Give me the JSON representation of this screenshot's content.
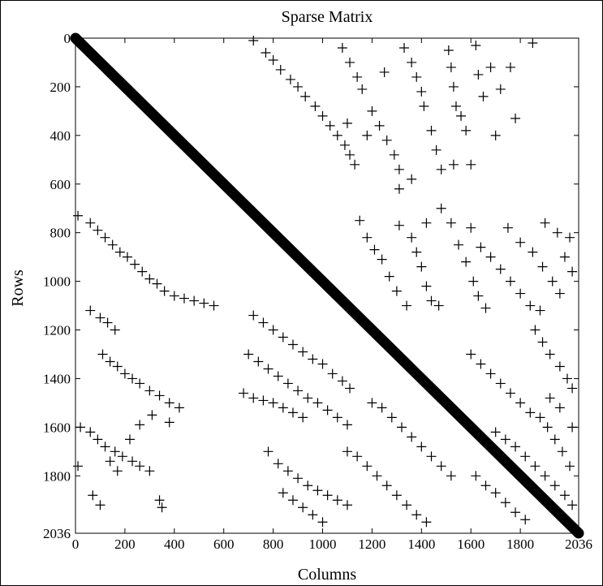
{
  "chart_data": {
    "type": "scatter",
    "title": "Sparse Matrix",
    "xlabel": "Columns",
    "ylabel": "Rows",
    "xlim": [
      0,
      2036
    ],
    "ylim": [
      0,
      2036
    ],
    "y_inverted": true,
    "marker": "+",
    "x_ticks": [
      0,
      200,
      400,
      600,
      800,
      1000,
      1200,
      1400,
      1600,
      1800,
      2036
    ],
    "y_ticks": [
      0,
      200,
      400,
      600,
      800,
      1000,
      1200,
      1400,
      1600,
      1800,
      2036
    ],
    "diagonal": {
      "from": [
        0,
        0
      ],
      "to": [
        2036,
        2036
      ]
    },
    "series": [
      {
        "structure": "upper off-diagonal bands",
        "points": [
          [
            720,
            10
          ],
          [
            770,
            60
          ],
          [
            800,
            90
          ],
          [
            830,
            130
          ],
          [
            870,
            170
          ],
          [
            900,
            200
          ],
          [
            930,
            240
          ],
          [
            970,
            280
          ],
          [
            1000,
            320
          ],
          [
            1030,
            360
          ],
          [
            1060,
            400
          ],
          [
            1090,
            440
          ],
          [
            1110,
            480
          ],
          [
            1130,
            520
          ],
          [
            1080,
            40
          ],
          [
            1110,
            100
          ],
          [
            1140,
            160
          ],
          [
            1160,
            210
          ],
          [
            1200,
            300
          ],
          [
            1230,
            360
          ],
          [
            1260,
            420
          ],
          [
            1290,
            480
          ],
          [
            1310,
            540
          ],
          [
            1330,
            40
          ],
          [
            1360,
            100
          ],
          [
            1380,
            160
          ],
          [
            1400,
            220
          ],
          [
            1410,
            280
          ],
          [
            1440,
            380
          ],
          [
            1460,
            460
          ],
          [
            1480,
            540
          ],
          [
            1510,
            50
          ],
          [
            1520,
            120
          ],
          [
            1530,
            200
          ],
          [
            1540,
            280
          ],
          [
            1560,
            320
          ],
          [
            1580,
            380
          ],
          [
            1600,
            520
          ],
          [
            1620,
            30
          ],
          [
            1630,
            150
          ],
          [
            1650,
            240
          ],
          [
            1680,
            120
          ],
          [
            1700,
            400
          ],
          [
            1720,
            210
          ],
          [
            1760,
            120
          ],
          [
            1780,
            330
          ],
          [
            1850,
            20
          ],
          [
            1100,
            350
          ],
          [
            1180,
            400
          ],
          [
            1250,
            140
          ],
          [
            1310,
            620
          ],
          [
            1360,
            580
          ],
          [
            1420,
            760
          ],
          [
            1480,
            700
          ],
          [
            1530,
            520
          ]
        ]
      },
      {
        "structure": "upper-right blocks",
        "points": [
          [
            1150,
            750
          ],
          [
            1180,
            820
          ],
          [
            1210,
            870
          ],
          [
            1240,
            910
          ],
          [
            1270,
            980
          ],
          [
            1300,
            1040
          ],
          [
            1340,
            1100
          ],
          [
            1310,
            770
          ],
          [
            1360,
            820
          ],
          [
            1380,
            880
          ],
          [
            1400,
            940
          ],
          [
            1420,
            1020
          ],
          [
            1440,
            1080
          ],
          [
            1470,
            1100
          ],
          [
            1520,
            760
          ],
          [
            1550,
            850
          ],
          [
            1580,
            920
          ],
          [
            1610,
            1000
          ],
          [
            1630,
            1060
          ],
          [
            1660,
            1110
          ],
          [
            1600,
            780
          ],
          [
            1640,
            860
          ],
          [
            1680,
            900
          ],
          [
            1720,
            950
          ],
          [
            1760,
            1000
          ],
          [
            1800,
            1050
          ],
          [
            1840,
            1100
          ],
          [
            1750,
            780
          ],
          [
            1800,
            840
          ],
          [
            1850,
            880
          ],
          [
            1890,
            940
          ],
          [
            1930,
            1000
          ],
          [
            1960,
            1050
          ],
          [
            1900,
            760
          ],
          [
            1950,
            800
          ],
          [
            2000,
            820
          ],
          [
            1980,
            900
          ],
          [
            2010,
            960
          ],
          [
            1880,
            1120
          ]
        ]
      },
      {
        "structure": "lower-left bands",
        "points": [
          [
            10,
            730
          ],
          [
            60,
            760
          ],
          [
            90,
            790
          ],
          [
            120,
            820
          ],
          [
            150,
            850
          ],
          [
            180,
            880
          ],
          [
            210,
            900
          ],
          [
            240,
            930
          ],
          [
            270,
            960
          ],
          [
            300,
            990
          ],
          [
            330,
            1010
          ],
          [
            360,
            1040
          ],
          [
            400,
            1060
          ],
          [
            440,
            1070
          ],
          [
            480,
            1080
          ],
          [
            520,
            1090
          ],
          [
            560,
            1100
          ],
          [
            60,
            1120
          ],
          [
            100,
            1150
          ],
          [
            130,
            1170
          ],
          [
            160,
            1200
          ],
          [
            110,
            1300
          ],
          [
            140,
            1330
          ],
          [
            170,
            1350
          ],
          [
            200,
            1380
          ],
          [
            230,
            1400
          ],
          [
            260,
            1420
          ],
          [
            300,
            1450
          ],
          [
            340,
            1470
          ],
          [
            380,
            1500
          ],
          [
            420,
            1520
          ],
          [
            20,
            1600
          ],
          [
            60,
            1620
          ],
          [
            90,
            1650
          ],
          [
            120,
            1680
          ],
          [
            160,
            1700
          ],
          [
            190,
            1720
          ],
          [
            230,
            1740
          ],
          [
            260,
            1760
          ],
          [
            300,
            1780
          ],
          [
            10,
            1760
          ],
          [
            70,
            1880
          ],
          [
            100,
            1920
          ],
          [
            140,
            1740
          ],
          [
            170,
            1780
          ],
          [
            220,
            1650
          ],
          [
            260,
            1590
          ],
          [
            310,
            1550
          ],
          [
            340,
            1900
          ],
          [
            350,
            1930
          ],
          [
            380,
            1580
          ]
        ]
      },
      {
        "structure": "lower-middle bands",
        "points": [
          [
            720,
            1140
          ],
          [
            760,
            1170
          ],
          [
            800,
            1200
          ],
          [
            840,
            1230
          ],
          [
            880,
            1260
          ],
          [
            920,
            1290
          ],
          [
            960,
            1320
          ],
          [
            1000,
            1340
          ],
          [
            1040,
            1380
          ],
          [
            1080,
            1410
          ],
          [
            1110,
            1440
          ],
          [
            700,
            1300
          ],
          [
            740,
            1330
          ],
          [
            780,
            1360
          ],
          [
            820,
            1390
          ],
          [
            860,
            1420
          ],
          [
            900,
            1450
          ],
          [
            940,
            1480
          ],
          [
            980,
            1500
          ],
          [
            1020,
            1530
          ],
          [
            1060,
            1560
          ],
          [
            1100,
            1590
          ],
          [
            680,
            1460
          ],
          [
            720,
            1480
          ],
          [
            760,
            1490
          ],
          [
            800,
            1500
          ],
          [
            840,
            1520
          ],
          [
            880,
            1540
          ],
          [
            920,
            1560
          ],
          [
            780,
            1700
          ],
          [
            820,
            1750
          ],
          [
            860,
            1780
          ],
          [
            900,
            1810
          ],
          [
            940,
            1840
          ],
          [
            980,
            1860
          ],
          [
            1020,
            1880
          ],
          [
            1060,
            1900
          ],
          [
            1100,
            1920
          ],
          [
            840,
            1870
          ],
          [
            880,
            1900
          ],
          [
            920,
            1930
          ],
          [
            960,
            1960
          ],
          [
            1000,
            1990
          ],
          [
            1100,
            1700
          ],
          [
            1140,
            1720
          ],
          [
            1180,
            1760
          ],
          [
            1220,
            1800
          ],
          [
            1260,
            1840
          ],
          [
            1300,
            1880
          ],
          [
            1340,
            1920
          ],
          [
            1380,
            1960
          ],
          [
            1420,
            1990
          ],
          [
            1200,
            1500
          ],
          [
            1240,
            1520
          ],
          [
            1280,
            1560
          ],
          [
            1320,
            1600
          ],
          [
            1360,
            1640
          ],
          [
            1400,
            1680
          ],
          [
            1440,
            1720
          ],
          [
            1480,
            1760
          ],
          [
            1520,
            1800
          ]
        ]
      },
      {
        "structure": "lower-right blocks",
        "points": [
          [
            1600,
            1300
          ],
          [
            1640,
            1340
          ],
          [
            1680,
            1380
          ],
          [
            1720,
            1420
          ],
          [
            1760,
            1460
          ],
          [
            1800,
            1500
          ],
          [
            1840,
            1540
          ],
          [
            1860,
            1200
          ],
          [
            1890,
            1250
          ],
          [
            1920,
            1300
          ],
          [
            1960,
            1350
          ],
          [
            1990,
            1400
          ],
          [
            2010,
            1440
          ],
          [
            1700,
            1620
          ],
          [
            1740,
            1650
          ],
          [
            1780,
            1680
          ],
          [
            1820,
            1720
          ],
          [
            1860,
            1760
          ],
          [
            1900,
            1800
          ],
          [
            1940,
            1840
          ],
          [
            1980,
            1880
          ],
          [
            2010,
            1920
          ],
          [
            1620,
            1800
          ],
          [
            1660,
            1840
          ],
          [
            1700,
            1870
          ],
          [
            1740,
            1910
          ],
          [
            1780,
            1950
          ],
          [
            1820,
            1980
          ],
          [
            1880,
            1560
          ],
          [
            1910,
            1600
          ],
          [
            1940,
            1650
          ],
          [
            1970,
            1700
          ],
          [
            2000,
            1760
          ],
          [
            1920,
            1480
          ],
          [
            1960,
            1520
          ],
          [
            2010,
            1600
          ]
        ]
      }
    ]
  }
}
